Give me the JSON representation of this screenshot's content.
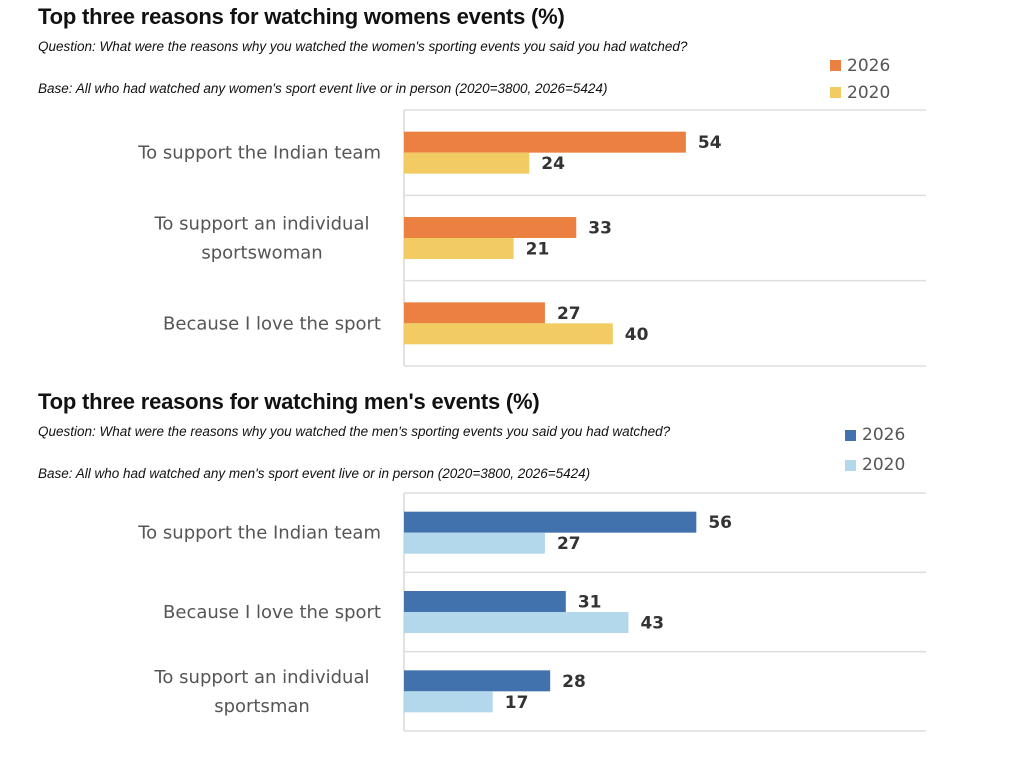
{
  "chart_data": [
    {
      "id": "women",
      "type": "bar",
      "orientation": "horizontal",
      "title": "Top three reasons for watching womens events (%)",
      "question": "Question: What were the reasons why you watched the women's sporting events you said you had watched?",
      "base": "Base: All who had watched any women's sport event live or in person (2020=3800, 2026=5424)",
      "categories": [
        [
          "To support the Indian team"
        ],
        [
          "To support an individual",
          "sportswoman"
        ],
        [
          "Because I love the sport"
        ]
      ],
      "series": [
        {
          "name": "2026",
          "color": "#eb8140",
          "values": [
            54,
            33,
            27
          ]
        },
        {
          "name": "2020",
          "color": "#f2cc62",
          "values": [
            24,
            21,
            40
          ]
        }
      ],
      "xlim": [
        0,
        100
      ],
      "grid": "horizontal separators",
      "legend": "top-right",
      "xlabel": "",
      "ylabel": ""
    },
    {
      "id": "men",
      "type": "bar",
      "orientation": "horizontal",
      "title": "Top three reasons for watching men's events (%)",
      "question": "Question: What were the reasons why you watched the men's sporting events you said you had watched?",
      "base": "Base: All who had watched any men's sport event live or in person (2020=3800, 2026=5424)",
      "categories": [
        [
          "To support the Indian team"
        ],
        [
          "Because I love the sport"
        ],
        [
          "To support an individual",
          "sportsman"
        ]
      ],
      "series": [
        {
          "name": "2026",
          "color": "#4172ae",
          "values": [
            56,
            31,
            28
          ]
        },
        {
          "name": "2020",
          "color": "#b3d7eb",
          "values": [
            27,
            43,
            17
          ]
        }
      ],
      "xlim": [
        0,
        100
      ],
      "grid": "horizontal separators",
      "legend": "top-right",
      "xlabel": "",
      "ylabel": ""
    }
  ]
}
